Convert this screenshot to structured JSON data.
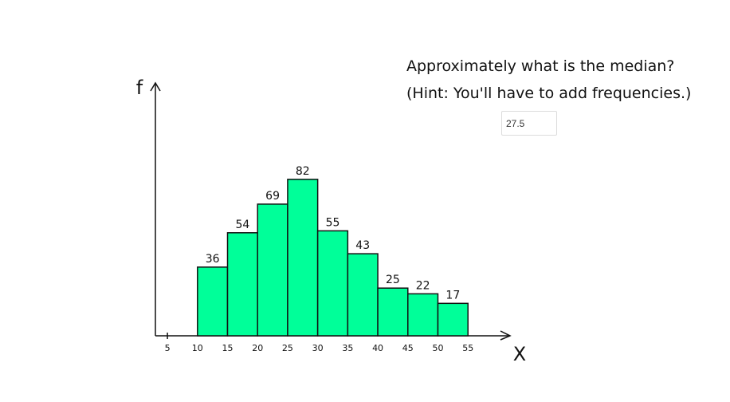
{
  "question": {
    "line1": "Approximately what is the median?",
    "line2": "(Hint: You'll have to add frequencies.)"
  },
  "answer": {
    "value": "27.5"
  },
  "chart_data": {
    "type": "bar",
    "bins": [
      {
        "start": 10,
        "end": 15,
        "value": 36
      },
      {
        "start": 15,
        "end": 20,
        "value": 54
      },
      {
        "start": 20,
        "end": 25,
        "value": 69
      },
      {
        "start": 25,
        "end": 30,
        "value": 82
      },
      {
        "start": 30,
        "end": 35,
        "value": 55
      },
      {
        "start": 35,
        "end": 40,
        "value": 43
      },
      {
        "start": 40,
        "end": 45,
        "value": 25
      },
      {
        "start": 45,
        "end": 50,
        "value": 22
      },
      {
        "start": 50,
        "end": 55,
        "value": 17
      }
    ],
    "x_ticks": [
      5,
      10,
      15,
      20,
      25,
      30,
      35,
      40,
      45,
      50,
      55
    ],
    "xlabel": "X",
    "ylabel": "f",
    "xlim": [
      3,
      62
    ],
    "ylim": [
      0,
      130
    ],
    "bar_color": "#00ff99",
    "edge_color": "#111111"
  }
}
